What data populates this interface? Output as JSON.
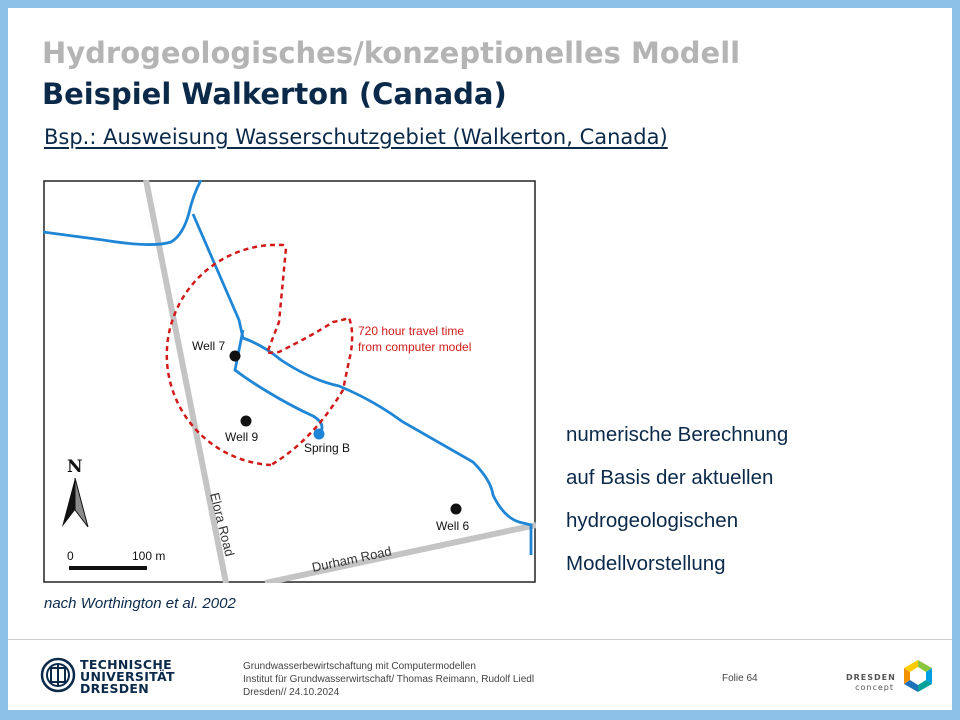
{
  "slide": {
    "title_line1": "Hydrogeologisches/konzeptionelles Modell",
    "title_line2": "Beispiel Walkerton (Canada)",
    "subtitle": "Bsp.: Ausweisung Wasserschutzgebiet (Walkerton, Canada)",
    "caption": "nach Worthington et al. 2002",
    "bullets": [
      "numerische Berechnung",
      "auf Basis der aktuellen",
      "hydrogeologischen",
      "Modellvorstellung"
    ]
  },
  "map": {
    "annotation_line1": "720 hour travel time",
    "annotation_line2": "from computer model",
    "well7": "Well 7",
    "well9": "Well 9",
    "well6": "Well 6",
    "spring_b": "Spring B",
    "elora_road": "Elora Road",
    "durham_road": "Durham Road",
    "north": "N",
    "scale_zero": "0",
    "scale_dist": "100 m",
    "colors": {
      "stream": "#1f86d6",
      "zone": "#d21a1a",
      "road": "#c4c4c4"
    }
  },
  "footer": {
    "university_line1": "TECHNISCHE",
    "university_line2": "UNIVERSITÄT",
    "university_line3": "DRESDEN",
    "course": "Grundwasserbewirtschaftung mit Computermodellen",
    "institute": "Institut für Grundwasserwirtschaft/ Thomas Reimann, Rudolf Liedl",
    "date": "Dresden// 24.10.2024",
    "slide_number": "Folie 64",
    "partner_line1": "DRESDEN",
    "partner_line2": "concept"
  }
}
